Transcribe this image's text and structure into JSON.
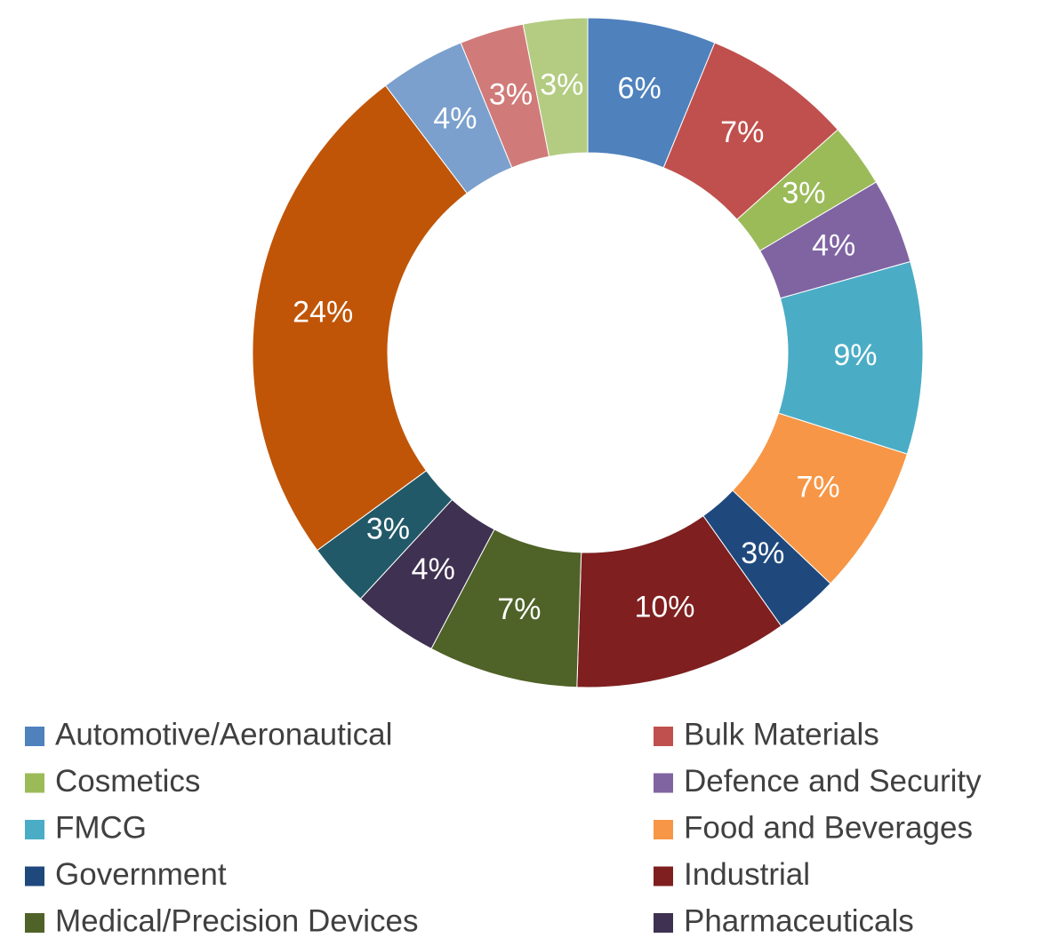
{
  "chart_data": {
    "type": "donut",
    "categories": [
      "Automotive/Aeronautical",
      "Bulk Materials",
      "Cosmetics",
      "Defence and Security",
      "FMCG",
      "Food and Beverages",
      "Government",
      "Industrial",
      "Medical/Precision Devices",
      "Pharmaceuticals",
      null,
      null,
      null,
      null,
      null
    ],
    "values": [
      6,
      7,
      3,
      4,
      9,
      7,
      3,
      10,
      7,
      4,
      3,
      24,
      4,
      3,
      3
    ],
    "value_labels": [
      "6%",
      "7%",
      "3%",
      "4%",
      "9%",
      "7%",
      "3%",
      "10%",
      "7%",
      "4%",
      "3%",
      "24%",
      "4%",
      "3%",
      "3%"
    ],
    "colors": [
      "#4F81BD",
      "#C0504D",
      "#9BBB59",
      "#8064A2",
      "#4BACC6",
      "#F79646",
      "#1F497D",
      "#7F1F1F",
      "#4F6228",
      "#3F3151",
      "#215968",
      "#C05508",
      "#7BA0CD",
      "#D07B79",
      "#B3CC82"
    ],
    "legend": true
  }
}
